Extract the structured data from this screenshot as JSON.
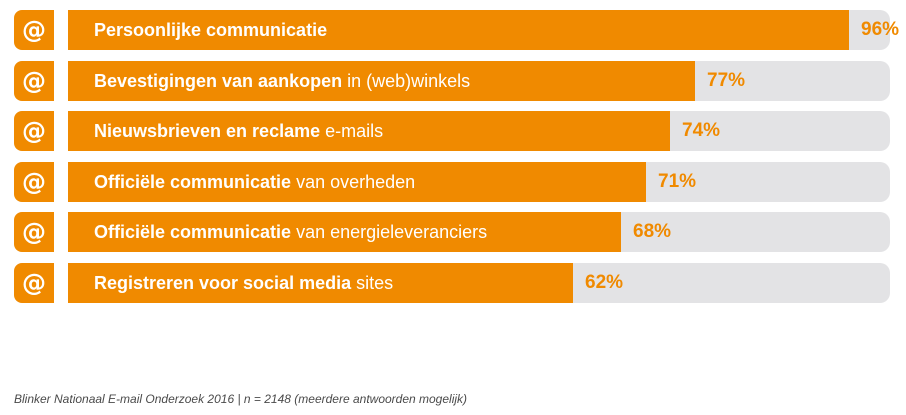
{
  "chart_data": {
    "type": "bar",
    "orientation": "horizontal",
    "xlim": [
      0,
      100
    ],
    "unit": "%",
    "icon": "at-sign-icon",
    "icon_glyph": "@",
    "colors": {
      "bar": "#f08a00",
      "track": "#e3e3e5",
      "badge_text": "#ffffff",
      "value_text": "#f08a00"
    },
    "categories": [
      {
        "bold": "Persoonlijke communicatie",
        "rest": ""
      },
      {
        "bold": "Bevestigingen van aankopen",
        "rest": " in (web)winkels"
      },
      {
        "bold": "Nieuwsbrieven en  reclame",
        "rest": " e-mails"
      },
      {
        "bold": "Officiële communicatie",
        "rest": " van overheden"
      },
      {
        "bold": "Officiële communicatie",
        "rest": " van energieleveranciers"
      },
      {
        "bold": "Registreren voor social media",
        "rest": " sites"
      }
    ],
    "values": [
      96,
      77,
      74,
      71,
      68,
      62
    ],
    "value_labels": [
      "96%",
      "77%",
      "74%",
      "71%",
      "68%",
      "62%"
    ]
  },
  "footnote": "Blinker Nationaal E-mail Onderzoek 2016 | n = 2148 (meerdere antwoorden mogelijk)"
}
